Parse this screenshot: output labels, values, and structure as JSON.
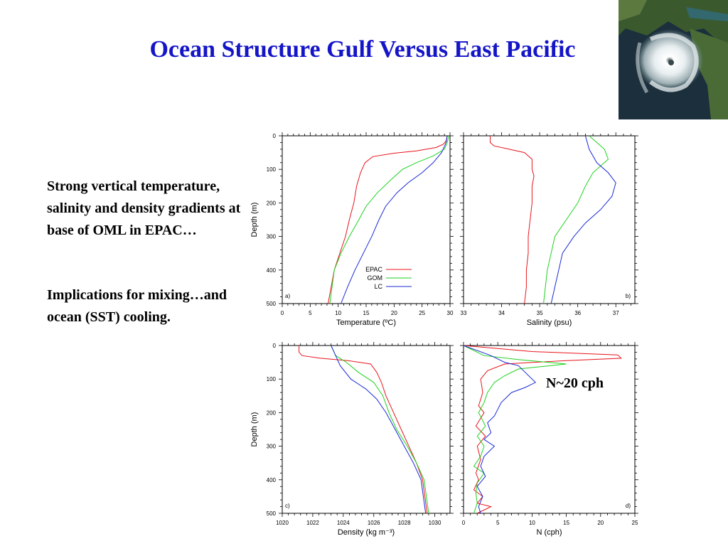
{
  "slide": {
    "title": "Ocean Structure Gulf Versus East Pacific",
    "bullet_1": "Strong vertical temperature, salinity and density gradients at base of OML in EPAC…",
    "bullet_2": "Implications for mixing…and ocean (SST) cooling.",
    "annotation": "N~20 cph"
  },
  "colors": {
    "title": "#1515c8",
    "EPAC": "#e8141b",
    "GOM": "#1ed21e",
    "LC": "#1a2ad6"
  },
  "chart_data": [
    {
      "type": "line",
      "panel_label": "a)",
      "xlabel": "Temperature (ºC)",
      "ylabel": "Depth (m)",
      "xlim": [
        0,
        30
      ],
      "ylim": [
        500,
        0
      ],
      "xticks": [
        0,
        5,
        10,
        15,
        20,
        25,
        30
      ],
      "xtick_labels": [
        "0",
        "5",
        "10",
        "15",
        "20",
        "25",
        "30"
      ],
      "yticks": [
        0,
        100,
        200,
        300,
        400,
        500
      ],
      "ytick_labels": [
        "0",
        "100",
        "200",
        "300",
        "400",
        "500"
      ],
      "legend": "inside-lower-right",
      "series": [
        {
          "name": "EPAC",
          "x": [
            29.5,
            29.3,
            28.8,
            27.5,
            24.0,
            20.0,
            16.2,
            14.8,
            14.0,
            13.3,
            12.8,
            12.0,
            11.3,
            10.3,
            9.3,
            8.2
          ],
          "y": [
            0,
            15,
            25,
            35,
            45,
            52,
            62,
            80,
            110,
            150,
            200,
            250,
            300,
            350,
            400,
            500
          ]
        },
        {
          "name": "GOM",
          "x": [
            29.8,
            29.5,
            29.0,
            27.0,
            24.0,
            21.5,
            19.5,
            17.0,
            15.0,
            13.7,
            12.0,
            10.5,
            9.3,
            8.5
          ],
          "y": [
            0,
            20,
            40,
            60,
            80,
            100,
            130,
            170,
            210,
            250,
            300,
            350,
            400,
            500
          ]
        },
        {
          "name": "LC",
          "x": [
            29.5,
            29.3,
            28.5,
            27.0,
            25.0,
            22.5,
            20.5,
            18.5,
            17.3,
            16.0,
            14.5,
            13.0,
            11.7,
            10.5
          ],
          "y": [
            0,
            20,
            50,
            80,
            110,
            140,
            170,
            210,
            250,
            300,
            350,
            400,
            450,
            500
          ]
        }
      ]
    },
    {
      "type": "line",
      "panel_label": "b)",
      "xlabel": "Salinity (psu)",
      "ylabel": "",
      "xlim": [
        33,
        37.5
      ],
      "ylim": [
        500,
        0
      ],
      "xticks": [
        33,
        34,
        35,
        36,
        37
      ],
      "xtick_labels": [
        "33",
        "34",
        "35",
        "36",
        "37"
      ],
      "yticks": [
        0,
        100,
        200,
        300,
        400,
        500
      ],
      "series": [
        {
          "name": "EPAC",
          "x": [
            33.7,
            33.7,
            33.8,
            34.2,
            34.6,
            34.8,
            34.8,
            34.85,
            34.8,
            34.8,
            34.75,
            34.7,
            34.7,
            34.65,
            34.65,
            34.6
          ],
          "y": [
            0,
            20,
            30,
            40,
            50,
            70,
            100,
            120,
            150,
            200,
            250,
            300,
            350,
            400,
            450,
            500
          ]
        },
        {
          "name": "GOM",
          "x": [
            36.3,
            36.5,
            36.7,
            36.8,
            36.4,
            36.2,
            36.0,
            35.7,
            35.4,
            35.3,
            35.2,
            35.1
          ],
          "y": [
            0,
            20,
            40,
            70,
            110,
            150,
            200,
            250,
            300,
            350,
            400,
            500
          ]
        },
        {
          "name": "LC",
          "x": [
            36.2,
            36.3,
            36.5,
            36.8,
            37.0,
            36.9,
            36.6,
            36.2,
            35.9,
            35.6,
            35.5,
            35.4,
            35.3
          ],
          "y": [
            0,
            40,
            80,
            110,
            140,
            180,
            220,
            260,
            300,
            350,
            400,
            450,
            500
          ]
        }
      ]
    },
    {
      "type": "line",
      "panel_label": "c)",
      "xlabel": "Density (kg m⁻³)",
      "ylabel": "Depth (m)",
      "xlim": [
        1020,
        1031
      ],
      "ylim": [
        500,
        0
      ],
      "xticks": [
        1020,
        1022,
        1024,
        1026,
        1028,
        1030
      ],
      "xtick_labels": [
        "1020",
        "1022",
        "1024",
        "1026",
        "1028",
        "1030"
      ],
      "yticks": [
        0,
        100,
        200,
        300,
        400,
        500
      ],
      "ytick_labels": [
        "0",
        "100",
        "200",
        "300",
        "400",
        "500"
      ],
      "series": [
        {
          "name": "EPAC",
          "x": [
            1021.1,
            1021.1,
            1021.3,
            1022.5,
            1024.3,
            1025.8,
            1026.2,
            1026.5,
            1026.8,
            1027.3,
            1027.8,
            1028.3,
            1028.8,
            1029.2,
            1029.5
          ],
          "y": [
            0,
            20,
            30,
            38,
            45,
            55,
            80,
            110,
            150,
            200,
            250,
            300,
            350,
            400,
            500
          ]
        },
        {
          "name": "GOM",
          "x": [
            1023.2,
            1023.3,
            1023.5,
            1024.2,
            1025.0,
            1026.0,
            1026.6,
            1027.0,
            1027.5,
            1028.2,
            1028.8,
            1029.3,
            1029.6
          ],
          "y": [
            0,
            10,
            30,
            50,
            80,
            110,
            150,
            200,
            250,
            300,
            350,
            400,
            500
          ]
        },
        {
          "name": "LC",
          "x": [
            1023.2,
            1023.3,
            1023.5,
            1023.8,
            1024.5,
            1025.5,
            1026.2,
            1026.8,
            1027.4,
            1028.0,
            1028.6,
            1029.1,
            1029.4
          ],
          "y": [
            0,
            10,
            30,
            60,
            100,
            130,
            160,
            200,
            250,
            300,
            350,
            400,
            500
          ]
        }
      ]
    },
    {
      "type": "line",
      "panel_label": "d)",
      "xlabel": "N (cph)",
      "ylabel": "",
      "xlim": [
        0,
        25
      ],
      "ylim": [
        500,
        0
      ],
      "xticks": [
        0,
        5,
        10,
        15,
        20,
        25
      ],
      "xtick_labels": [
        "0",
        "5",
        "10",
        "15",
        "20",
        "25"
      ],
      "yticks": [
        0,
        100,
        200,
        300,
        400,
        500
      ],
      "series": [
        {
          "name": "EPAC",
          "x": [
            0,
            10,
            22.5,
            23,
            15,
            6,
            3.5,
            2.5,
            2.8,
            2.2,
            3.0,
            1.8,
            3.2,
            2.0,
            2.5,
            1.8,
            2.2,
            1.5,
            2.8,
            2.0,
            4.0,
            2.0
          ],
          "y": [
            0,
            18,
            28,
            38,
            45,
            55,
            75,
            100,
            140,
            180,
            200,
            240,
            270,
            300,
            340,
            380,
            400,
            430,
            450,
            470,
            480,
            500
          ]
        },
        {
          "name": "GOM",
          "x": [
            0,
            3,
            8,
            15,
            8,
            6,
            4.5,
            3.5,
            3.0,
            2.2,
            3.2,
            2.0,
            3.0,
            2.5,
            1.5,
            3.0,
            2.0,
            1.8,
            2.0,
            1.5
          ],
          "y": [
            0,
            30,
            42,
            55,
            70,
            90,
            110,
            140,
            170,
            200,
            240,
            270,
            300,
            330,
            360,
            380,
            410,
            440,
            470,
            500
          ]
        },
        {
          "name": "LC",
          "x": [
            0,
            4,
            6,
            8,
            9,
            10.5,
            9,
            7,
            5.5,
            5,
            4.5,
            3.5,
            4.0,
            3.0,
            4.5,
            3.0,
            2.5,
            3.2,
            2.0,
            2.8,
            2.2,
            2.5
          ],
          "y": [
            0,
            30,
            50,
            60,
            80,
            110,
            125,
            140,
            170,
            190,
            210,
            230,
            260,
            280,
            300,
            330,
            360,
            390,
            420,
            450,
            480,
            500
          ]
        }
      ]
    }
  ]
}
